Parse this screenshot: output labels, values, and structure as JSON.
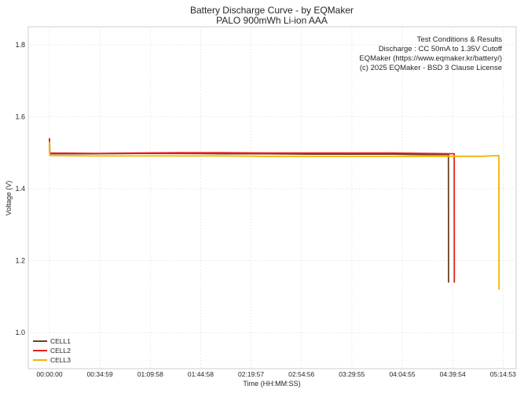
{
  "chart_data": {
    "type": "line",
    "title": "Battery Discharge Curve - by EQMaker",
    "subtitle": "PALO 900mWh Li-ion AAA",
    "xlabel": "Time (HH:MM:SS)",
    "ylabel": "Voltage (V)",
    "xlim": [
      "00:00:00",
      "05:24:00"
    ],
    "ylim": [
      0.9,
      1.85
    ],
    "x_ticks": [
      "00:00:00",
      "00:34:59",
      "01:09:58",
      "01:44:58",
      "02:19:57",
      "02:54:56",
      "03:29:55",
      "04:04:55",
      "04:39:54",
      "05:14:53"
    ],
    "y_ticks": [
      "1.0",
      "1.2",
      "1.4",
      "1.6",
      "1.8"
    ],
    "grid": true,
    "legend_position": "lower-left",
    "annotation": {
      "lines": [
        "Test Conditions & Results",
        "Discharge : CC 50mA to 1.35V Cutoff",
        "EQMaker (https://www.eqmaker.kr/battery/)",
        "(c) 2025 EQMaker - BSD 3 Clause License"
      ]
    },
    "series": [
      {
        "name": "CELL1",
        "color": "#6b4226",
        "x": [
          "00:00:00",
          "00:00:10",
          "00:00:30",
          "00:30:00",
          "01:00:00",
          "01:30:00",
          "02:00:00",
          "02:30:00",
          "03:00:00",
          "03:30:00",
          "04:00:00",
          "04:20:00",
          "04:37:00",
          "04:37:05",
          "04:37:10"
        ],
        "y": [
          1.54,
          1.5,
          1.497,
          1.497,
          1.498,
          1.498,
          1.497,
          1.497,
          1.496,
          1.496,
          1.496,
          1.495,
          1.495,
          1.14,
          1.14
        ]
      },
      {
        "name": "CELL2",
        "color": "#e3211c",
        "x": [
          "00:00:00",
          "00:00:10",
          "00:00:30",
          "00:30:00",
          "01:00:00",
          "01:30:00",
          "02:00:00",
          "02:30:00",
          "03:00:00",
          "03:30:00",
          "04:00:00",
          "04:20:00",
          "04:41:00",
          "04:41:05",
          "04:41:10"
        ],
        "y": [
          1.54,
          1.502,
          1.499,
          1.498,
          1.499,
          1.5,
          1.5,
          1.499,
          1.499,
          1.499,
          1.499,
          1.498,
          1.497,
          1.14,
          1.14
        ]
      },
      {
        "name": "CELL3",
        "color": "#f2b400",
        "x": [
          "00:00:00",
          "00:00:10",
          "00:00:30",
          "00:30:00",
          "01:00:00",
          "01:30:00",
          "02:00:00",
          "02:30:00",
          "03:00:00",
          "03:30:00",
          "04:00:00",
          "04:30:00",
          "05:00:00",
          "05:12:00",
          "05:12:05",
          "05:12:10"
        ],
        "y": [
          1.53,
          1.494,
          1.492,
          1.491,
          1.491,
          1.491,
          1.491,
          1.49,
          1.49,
          1.49,
          1.49,
          1.49,
          1.49,
          1.492,
          1.12,
          1.12
        ]
      }
    ]
  }
}
